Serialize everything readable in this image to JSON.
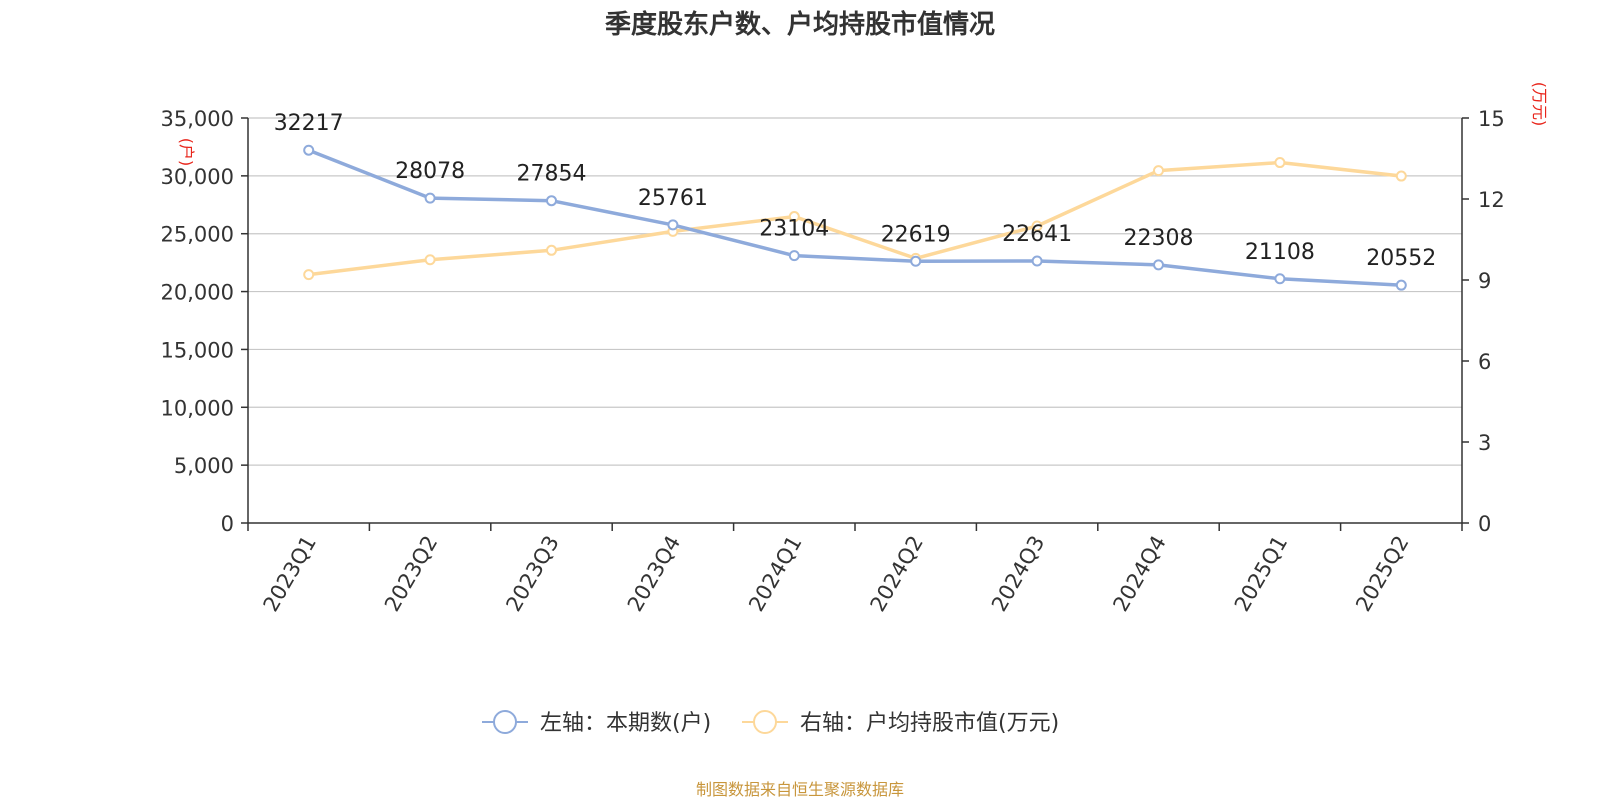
{
  "chart_data": {
    "type": "line",
    "title": "季度股东户数、户均持股市值情况",
    "categories": [
      "2023Q1",
      "2023Q2",
      "2023Q3",
      "2023Q4",
      "2024Q1",
      "2024Q2",
      "2024Q3",
      "2024Q4",
      "2025Q1",
      "2025Q2"
    ],
    "left_axis": {
      "unit": "(户)",
      "ylim": [
        0,
        35000
      ],
      "ticks": [
        "0",
        "5,000",
        "10,000",
        "15,000",
        "20,000",
        "25,000",
        "30,000",
        "35,000"
      ]
    },
    "right_axis": {
      "unit": "(万元)",
      "ylim": [
        0,
        15
      ],
      "ticks": [
        "0",
        "3",
        "6",
        "9",
        "12",
        "15"
      ]
    },
    "series": [
      {
        "name": "左轴：本期数(户)",
        "axis": "left",
        "color": "#8eaadb",
        "values": [
          32217,
          28078,
          27854,
          25761,
          23104,
          22619,
          22641,
          22308,
          21108,
          20552
        ],
        "labels": [
          "32217",
          "28078",
          "27854",
          "25761",
          "23104",
          "22619",
          "22641",
          "22308",
          "21108",
          "20552"
        ]
      },
      {
        "name": "右轴：户均持股市值(万元)",
        "axis": "right",
        "color": "#fdd89a",
        "values": [
          9.2,
          9.75,
          10.1,
          10.8,
          11.35,
          9.8,
          11.0,
          13.05,
          13.35,
          12.85
        ]
      }
    ],
    "grid": true,
    "legend_position": "bottom"
  },
  "source": "制图数据来自恒生聚源数据库"
}
